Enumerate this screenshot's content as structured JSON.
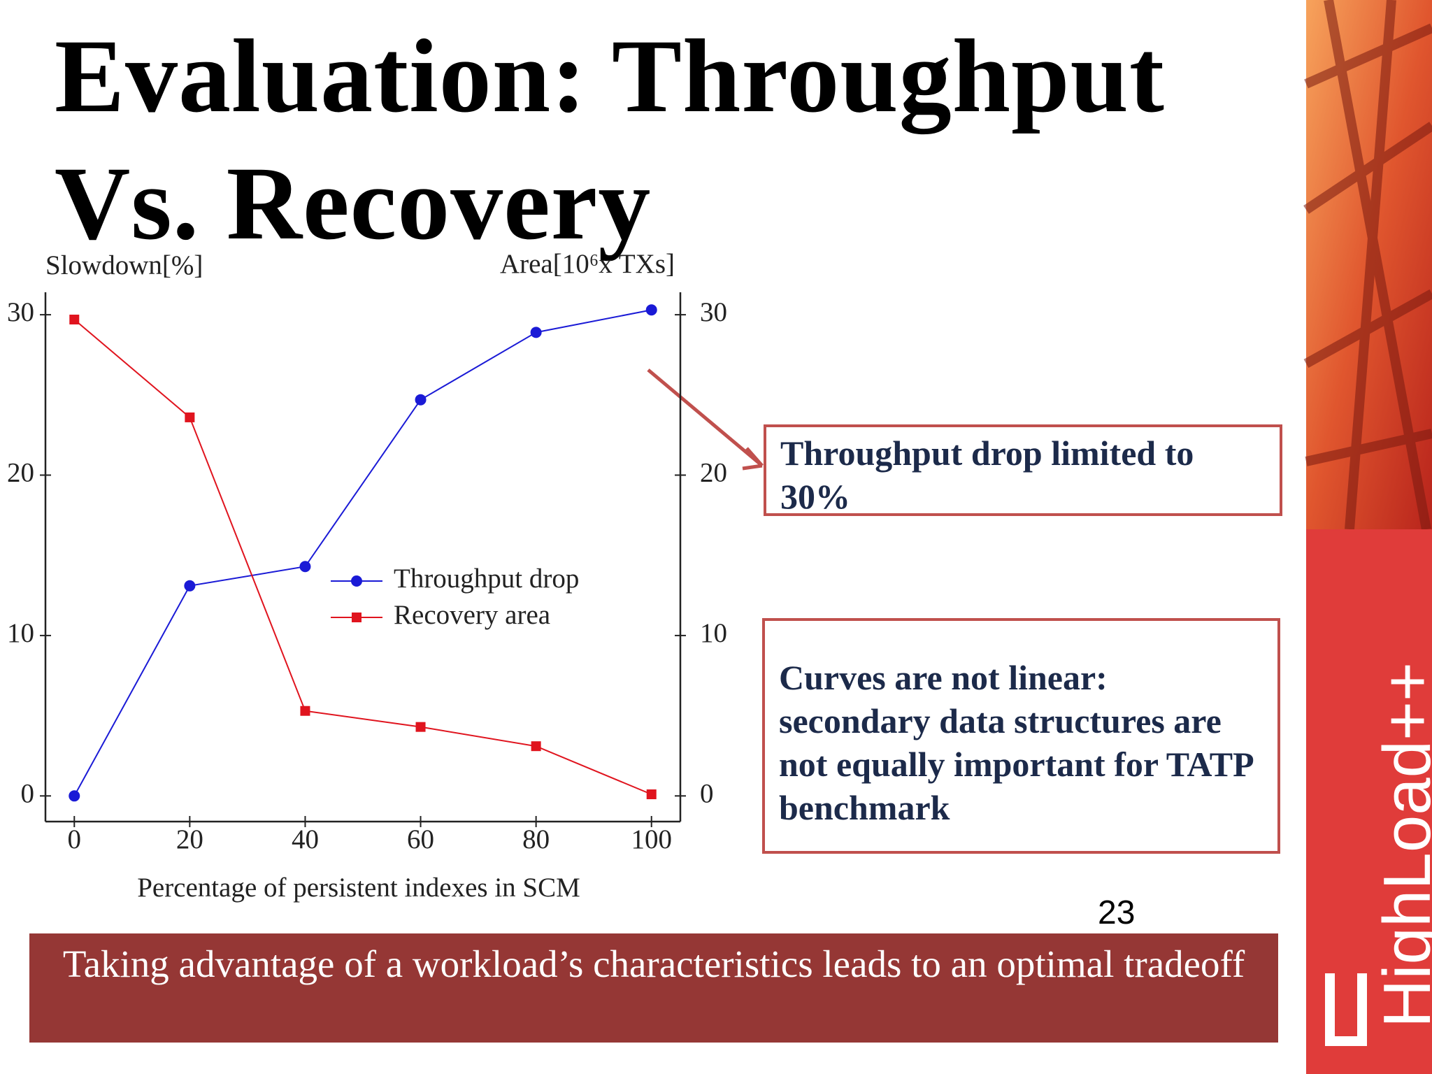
{
  "slide": {
    "title": "Evaluation: Throughput Vs. Recovery",
    "callouts": [
      "Throughput drop limited to 30%",
      "Curves are not linear: secondary data structures are not equally important for TATP benchmark"
    ],
    "page_number": "23",
    "footer": "Taking advantage of a workload’s characteristics leads to an optimal tradeoff",
    "logo": "HighLoad++"
  },
  "chart_data": {
    "type": "line",
    "y_label": "Slowdown[%]",
    "y2_label": "Area[10⁶x TXs]",
    "x_label": "Percentage of persistent indexes in SCM",
    "x": [
      0,
      20,
      40,
      60,
      80,
      100
    ],
    "series": [
      {
        "name": "Throughput drop",
        "color": "#1a1ad6",
        "marker": "circle",
        "values": [
          0,
          13.1,
          14.3,
          24.7,
          28.9,
          30.3
        ]
      },
      {
        "name": "Recovery area",
        "color": "#e0141e",
        "marker": "square",
        "axis": "y2",
        "values": [
          29.7,
          23.6,
          5.3,
          4.3,
          3.1,
          0.1
        ]
      }
    ],
    "xlim": [
      -5,
      105
    ],
    "xticks": [
      0,
      20,
      40,
      60,
      80,
      100
    ],
    "ylim": [
      -1.6,
      31.4
    ],
    "yticks": [
      0,
      10,
      20,
      30
    ],
    "y2lim": [
      -1.6,
      31.4
    ],
    "y2ticks": [
      0,
      10,
      20,
      30
    ],
    "grid": false,
    "legend": "center"
  }
}
